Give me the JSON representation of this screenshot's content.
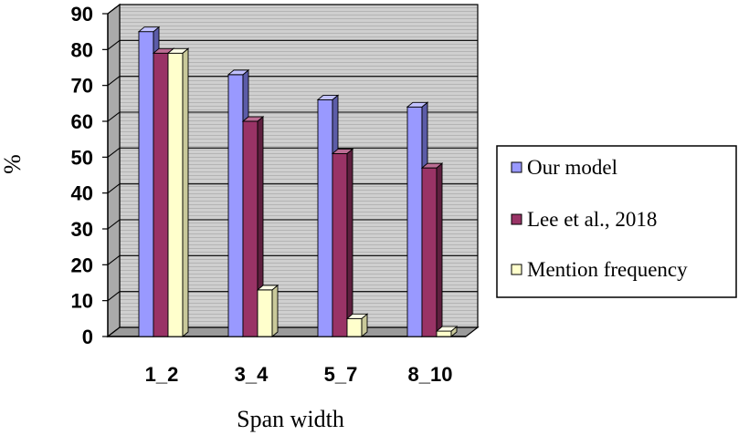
{
  "chart_data": {
    "type": "bar",
    "categories": [
      "1_2",
      "3_4",
      "5_7",
      "8_10"
    ],
    "series": [
      {
        "name": "Our model",
        "values": [
          85,
          73,
          66,
          64
        ]
      },
      {
        "name": "Lee et al., 2018",
        "values": [
          79,
          60,
          51,
          47
        ]
      },
      {
        "name": "Mention frequency",
        "values": [
          79,
          13,
          5,
          1.5
        ]
      }
    ],
    "xlabel": "Span width",
    "ylabel": "%",
    "ylim": [
      0,
      90
    ],
    "yticks": [
      "0",
      "10",
      "20",
      "30",
      "40",
      "50",
      "60",
      "70",
      "80",
      "90"
    ],
    "grid": true,
    "legend_position": "right",
    "colors": {
      "series": [
        "#9999ff",
        "#993366",
        "#ffffcc"
      ],
      "series_side": [
        "#5c5ca8",
        "#5e1f3f",
        "#c9c99a"
      ],
      "series_top": [
        "#c2c2ff",
        "#bb6d93",
        "#ffffe8"
      ],
      "plot_background": "#c8c8c8",
      "gridline": "#000000"
    }
  }
}
